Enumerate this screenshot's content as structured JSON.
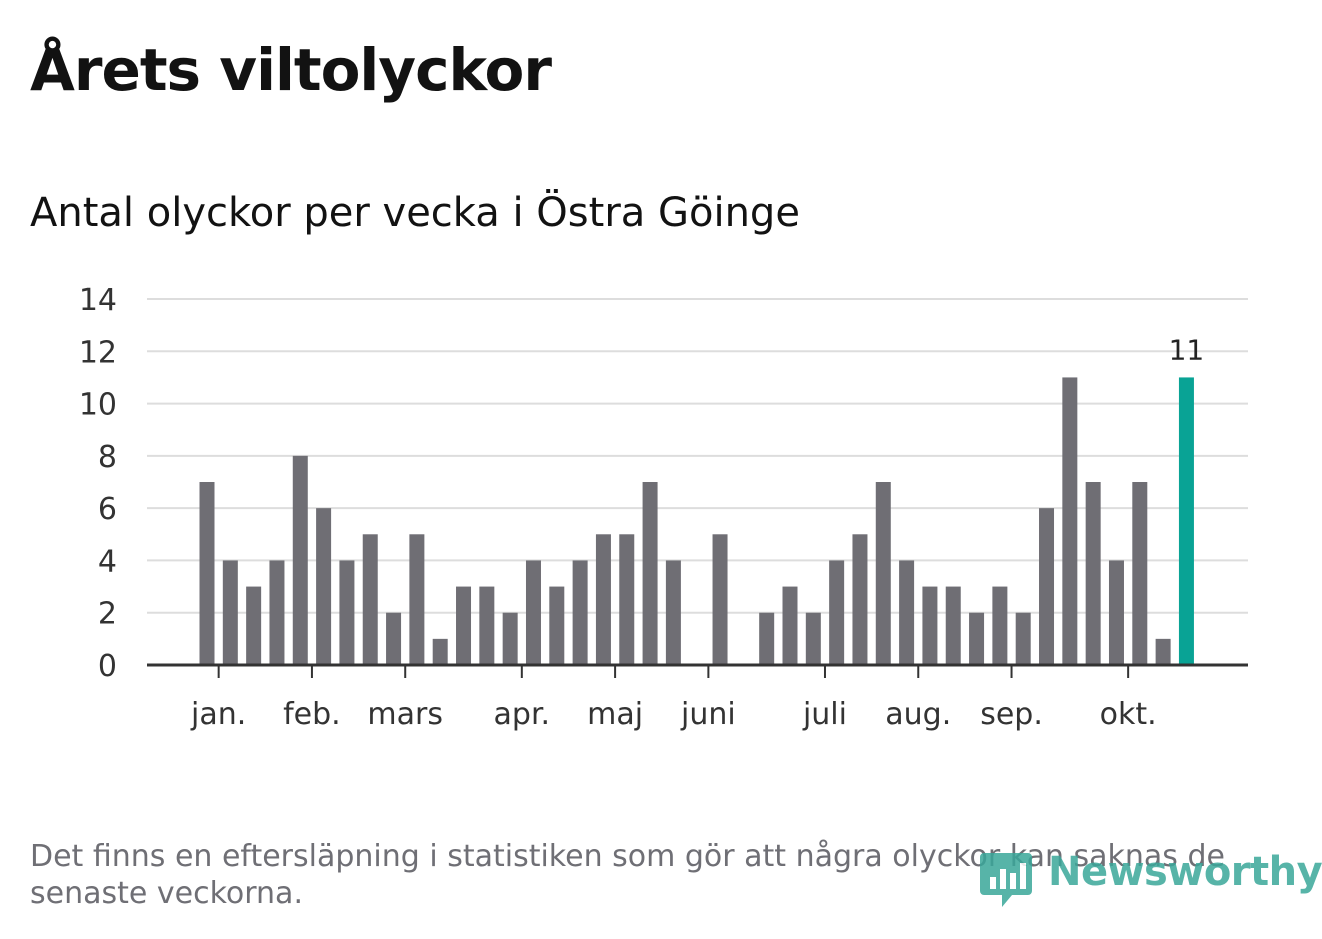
{
  "chart_data": {
    "type": "bar",
    "title": "Årets viltolyckor",
    "subtitle": "Antal olyckor per vecka i Östra Göinge",
    "values": [
      7,
      4,
      3,
      4,
      8,
      6,
      4,
      5,
      2,
      5,
      1,
      3,
      3,
      2,
      4,
      3,
      4,
      5,
      5,
      7,
      4,
      0,
      5,
      0,
      2,
      3,
      2,
      4,
      5,
      7,
      4,
      3,
      3,
      2,
      3,
      2,
      6,
      11,
      7,
      4,
      7,
      1,
      11
    ],
    "highlight_last": true,
    "highlight_label": "11",
    "ylim": [
      0,
      14
    ],
    "yticks": [
      0,
      2,
      4,
      6,
      8,
      10,
      12,
      14
    ],
    "month_labels": [
      {
        "label": "jan.",
        "at_bar": 0.5
      },
      {
        "label": "feb.",
        "at_bar": 4.5
      },
      {
        "label": "mars",
        "at_bar": 8.5
      },
      {
        "label": "apr.",
        "at_bar": 13.5
      },
      {
        "label": "maj",
        "at_bar": 17.5
      },
      {
        "label": "juni",
        "at_bar": 21.5
      },
      {
        "label": "juli",
        "at_bar": 26.5
      },
      {
        "label": "aug.",
        "at_bar": 30.5
      },
      {
        "label": "sep.",
        "at_bar": 34.5
      },
      {
        "label": "okt.",
        "at_bar": 39.5
      }
    ],
    "colors": {
      "bar": "#6f6e74",
      "highlight": "#09a395",
      "grid": "#dddddd",
      "axis": "#333333"
    }
  },
  "footnote": "Det finns en eftersläpning i statistiken som gör att några olyckor kan saknas de senaste veckorna.",
  "brand": "Newsworthy"
}
